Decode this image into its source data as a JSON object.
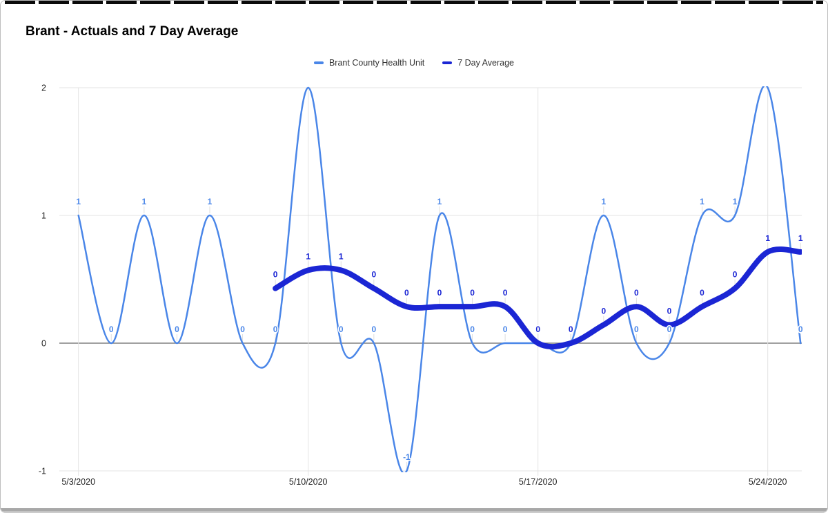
{
  "title": "Brant - Actuals and 7 Day Average",
  "legend": {
    "items": [
      {
        "label": "Brant County Health Unit"
      },
      {
        "label": "7 Day Average"
      }
    ]
  },
  "chart_data": {
    "type": "line",
    "title": "Brant - Actuals and 7 Day Average",
    "smooth": true,
    "grid": true,
    "legend_position": "top",
    "ylim": [
      -1,
      2
    ],
    "y_ticks": [
      {
        "label": "2",
        "value": 2
      },
      {
        "label": "1",
        "value": 1
      },
      {
        "label": "0",
        "value": 0
      },
      {
        "label": "-1",
        "value": -1
      }
    ],
    "x_ticks": [
      {
        "label": "5/3/2020",
        "day": 0
      },
      {
        "label": "5/10/2020",
        "day": 7
      },
      {
        "label": "5/17/2020",
        "day": 14
      },
      {
        "label": "5/24/2020",
        "day": 21
      }
    ],
    "series": [
      {
        "name": "Brant County Health Unit",
        "color": "#4a86e8",
        "line_width": 2.5,
        "start_day": 0,
        "values": [
          1,
          0,
          1,
          0,
          1,
          0,
          0,
          2,
          0,
          0,
          -1,
          1,
          0,
          0,
          0,
          0,
          1,
          0,
          0,
          1,
          1,
          2,
          0
        ],
        "labels": [
          "1",
          "0",
          "1",
          "0",
          "1",
          "0",
          "0",
          null,
          "0",
          "0",
          "-1",
          "1",
          "0",
          "0",
          "0",
          "0",
          "1",
          "0",
          "0",
          "1",
          "1",
          null,
          "0"
        ]
      },
      {
        "name": "7 Day Average",
        "color": "#1b26d4",
        "line_width": 8,
        "start_day": 6,
        "values": [
          0.429,
          0.571,
          0.571,
          0.429,
          0.286,
          0.286,
          0.286,
          0.286,
          0,
          0,
          0.143,
          0.286,
          0.143,
          0.286,
          0.429,
          0.714,
          0.714
        ],
        "labels": [
          "0",
          "1",
          "1",
          "0",
          "0",
          "0",
          "0",
          "0",
          "0",
          "0",
          "0",
          "0",
          "0",
          "0",
          "0",
          "1",
          "1"
        ]
      }
    ]
  }
}
